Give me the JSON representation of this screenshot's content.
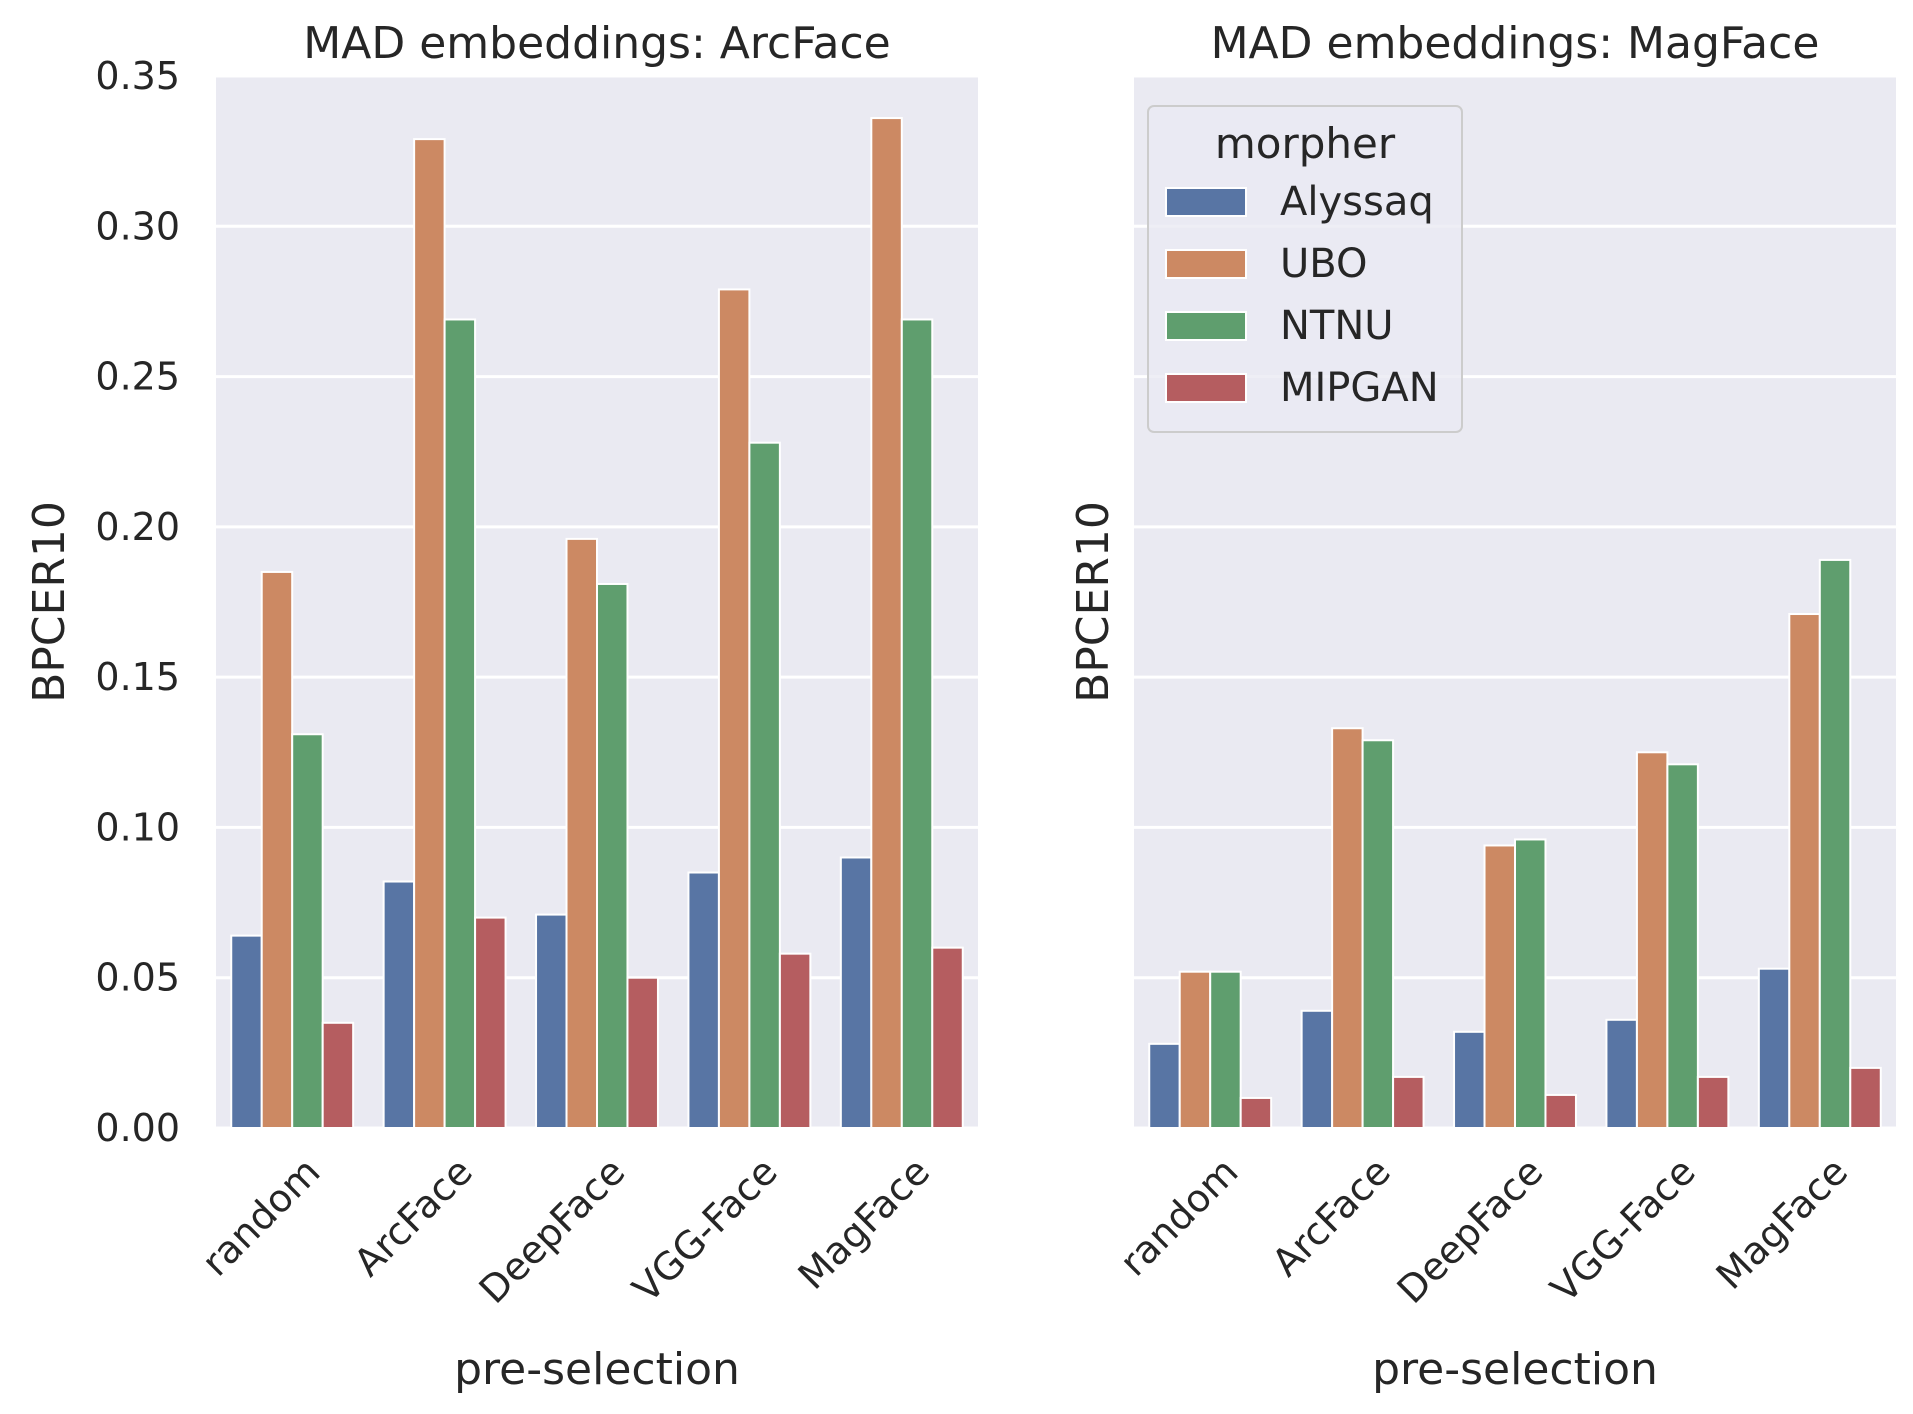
{
  "chart_data": [
    {
      "type": "bar",
      "title": "MAD embeddings: ArcFace",
      "xlabel": "pre-selection",
      "ylabel": "BPCER10",
      "categories": [
        "random",
        "ArcFace",
        "DeepFace",
        "VGG-Face",
        "MagFace"
      ],
      "yticks": [
        "0.00",
        "0.05",
        "0.10",
        "0.15",
        "0.20",
        "0.25",
        "0.30",
        "0.35"
      ],
      "ylim": [
        0,
        0.35
      ],
      "grid": true,
      "series": [
        {
          "name": "Alyssaq",
          "color": "#5875a4",
          "values": [
            0.064,
            0.082,
            0.071,
            0.085,
            0.09
          ]
        },
        {
          "name": "UBO",
          "color": "#cc8963",
          "values": [
            0.185,
            0.329,
            0.196,
            0.279,
            0.336
          ]
        },
        {
          "name": "NTNU",
          "color": "#5f9e6e",
          "values": [
            0.131,
            0.269,
            0.181,
            0.228,
            0.269
          ]
        },
        {
          "name": "MIPGAN",
          "color": "#b55d60",
          "values": [
            0.035,
            0.07,
            0.05,
            0.058,
            0.06
          ]
        }
      ]
    },
    {
      "type": "bar",
      "title": "MAD embeddings: MagFace",
      "xlabel": "pre-selection",
      "ylabel": "BPCER10",
      "categories": [
        "random",
        "ArcFace",
        "DeepFace",
        "VGG-Face",
        "MagFace"
      ],
      "ylim": [
        0,
        0.35
      ],
      "grid": true,
      "legend": {
        "title": "morpher",
        "placement": "top-left"
      },
      "series": [
        {
          "name": "Alyssaq",
          "color": "#5875a4",
          "values": [
            0.028,
            0.039,
            0.032,
            0.036,
            0.053
          ]
        },
        {
          "name": "UBO",
          "color": "#cc8963",
          "values": [
            0.052,
            0.133,
            0.094,
            0.125,
            0.171
          ]
        },
        {
          "name": "NTNU",
          "color": "#5f9e6e",
          "values": [
            0.052,
            0.129,
            0.096,
            0.121,
            0.189
          ]
        },
        {
          "name": "MIPGAN",
          "color": "#b55d60",
          "values": [
            0.01,
            0.017,
            0.011,
            0.017,
            0.02
          ]
        }
      ]
    }
  ]
}
